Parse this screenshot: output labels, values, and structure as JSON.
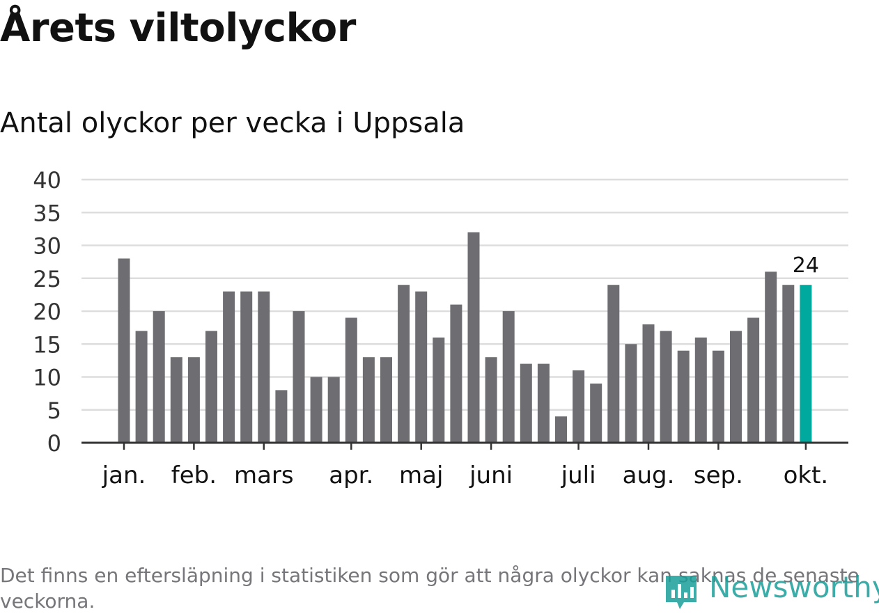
{
  "title": "Årets viltolyckor",
  "subtitle": "Antal olyckor per vecka i Uppsala",
  "footnote": "Det finns en eftersläpning i statistiken som gör att några olyckor kan saknas de senaste veckorna.",
  "logo_text": "Newsworthy",
  "colors": {
    "bar": "#6e6d72",
    "highlight": "#00a99d",
    "grid": "#dddddd",
    "axis": "#333333",
    "text": "#111111"
  },
  "chart_data": {
    "type": "bar",
    "title": "Antal olyckor per vecka i Uppsala",
    "xlabel": "",
    "ylabel": "",
    "ylim": [
      0,
      40
    ],
    "yticks": [
      0,
      5,
      10,
      15,
      20,
      25,
      30,
      35,
      40
    ],
    "values": [
      28,
      17,
      20,
      13,
      13,
      17,
      23,
      23,
      23,
      8,
      20,
      10,
      10,
      19,
      13,
      13,
      24,
      23,
      16,
      21,
      32,
      13,
      20,
      12,
      12,
      4,
      11,
      9,
      24,
      15,
      18,
      17,
      14,
      16,
      14,
      17,
      19,
      26,
      24,
      24
    ],
    "month_labels": [
      {
        "label": "jan.",
        "index": 0
      },
      {
        "label": "feb.",
        "index": 4
      },
      {
        "label": "mars",
        "index": 8
      },
      {
        "label": "apr.",
        "index": 13
      },
      {
        "label": "maj",
        "index": 17
      },
      {
        "label": "juni",
        "index": 21
      },
      {
        "label": "juli",
        "index": 26
      },
      {
        "label": "aug.",
        "index": 30
      },
      {
        "label": "sep.",
        "index": 34
      },
      {
        "label": "okt.",
        "index": 39
      }
    ],
    "highlight_index": 39,
    "annotation": {
      "index": 39,
      "text": "24"
    }
  }
}
